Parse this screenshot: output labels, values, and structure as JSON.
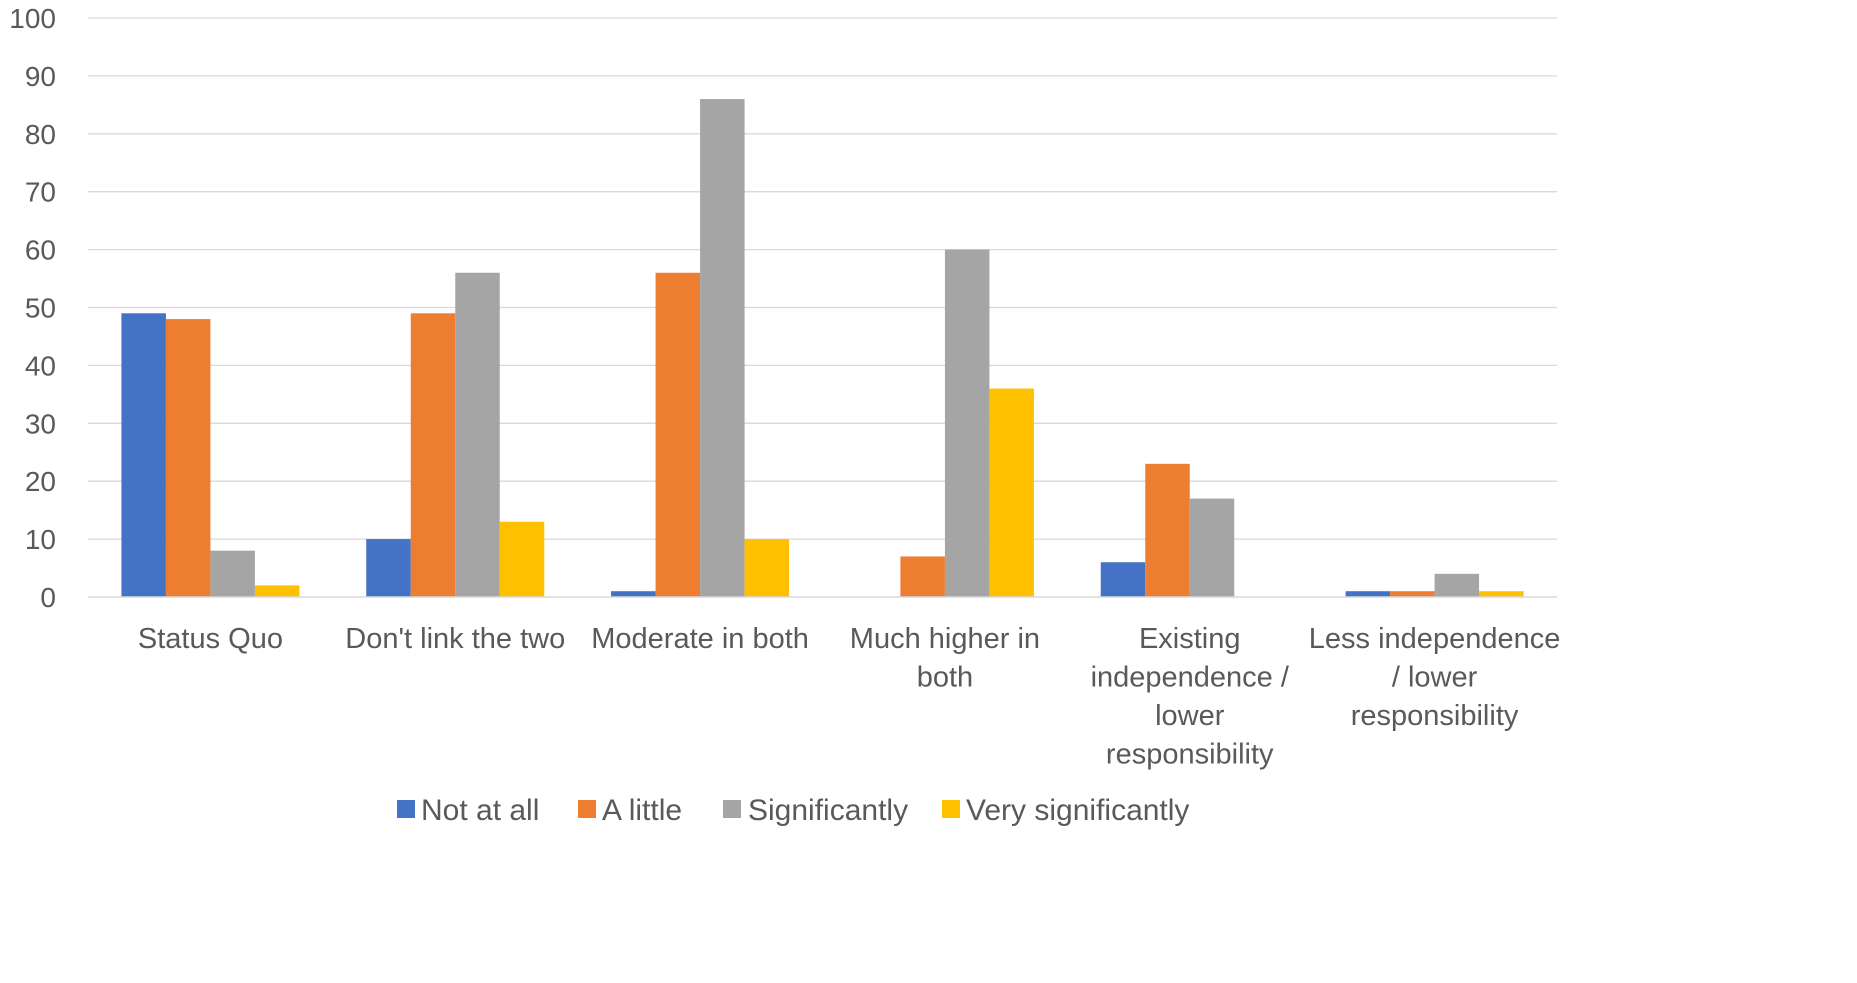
{
  "chart_data": {
    "type": "bar",
    "title": "",
    "xlabel": "",
    "ylabel": "",
    "ylim": [
      0,
      100
    ],
    "yticks": [
      0,
      10,
      20,
      30,
      40,
      50,
      60,
      70,
      80,
      90,
      100
    ],
    "grid": true,
    "legend_position": "bottom",
    "categories": [
      [
        "Status Quo"
      ],
      [
        "Don't link the two"
      ],
      [
        "Moderate in both"
      ],
      [
        "Much higher in",
        "both"
      ],
      [
        "Existing",
        "independence /",
        "lower",
        "responsibility"
      ],
      [
        "Less independence",
        "/ lower",
        "responsibility"
      ]
    ],
    "series": [
      {
        "name": "Not at all",
        "color": "#4472C4",
        "values": [
          49,
          10,
          1,
          0,
          6,
          1
        ]
      },
      {
        "name": "A little",
        "color": "#ED7D31",
        "values": [
          48,
          49,
          56,
          7,
          23,
          1
        ]
      },
      {
        "name": "Significantly",
        "color": "#A5A5A5",
        "values": [
          8,
          56,
          86,
          60,
          17,
          4
        ]
      },
      {
        "name": "Very significantly",
        "color": "#FFC000",
        "values": [
          2,
          13,
          10,
          36,
          0,
          1
        ]
      }
    ]
  }
}
